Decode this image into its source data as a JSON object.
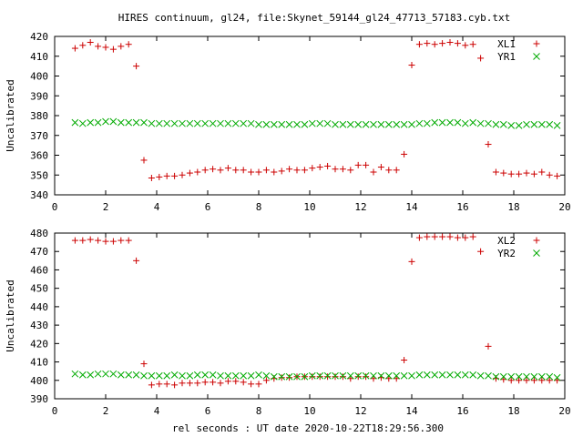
{
  "title": "HIRES continuum, gl24, file:Skynet_59144_gl24_47713_57183.cyb.txt",
  "xlabel": "rel seconds : UT date 2020-10-22T18:29:56.300",
  "chart_data": [
    {
      "type": "scatter",
      "ylabel": "Uncalibrated",
      "xlim": [
        0,
        20
      ],
      "ylim": [
        340,
        420
      ],
      "xticks": [
        0,
        2,
        4,
        6,
        8,
        10,
        12,
        14,
        16,
        18,
        20
      ],
      "yticks": [
        340,
        350,
        360,
        370,
        380,
        390,
        400,
        410,
        420
      ],
      "legend_position": "top-right",
      "series": [
        {
          "name": "XL1",
          "marker": "plus",
          "color": "#cc0000",
          "x": [
            0.8,
            1.1,
            1.4,
            1.7,
            2.0,
            2.3,
            2.6,
            2.9,
            3.2,
            3.5,
            3.8,
            4.1,
            4.4,
            4.7,
            5.0,
            5.3,
            5.6,
            5.9,
            6.2,
            6.5,
            6.8,
            7.1,
            7.4,
            7.7,
            8.0,
            8.3,
            8.6,
            8.9,
            9.2,
            9.5,
            9.8,
            10.1,
            10.4,
            10.7,
            11.0,
            11.3,
            11.6,
            11.9,
            12.2,
            12.5,
            12.8,
            13.1,
            13.4,
            13.7,
            14.0,
            14.3,
            14.6,
            14.9,
            15.2,
            15.5,
            15.8,
            16.1,
            16.4,
            16.7,
            17.0,
            17.3,
            17.6,
            17.9,
            18.2,
            18.5,
            18.8,
            19.1,
            19.4,
            19.7
          ],
          "y": [
            414,
            415.5,
            417,
            415,
            414.5,
            413.5,
            415,
            416,
            405,
            357.5,
            348.5,
            349,
            349.5,
            349.5,
            350,
            351,
            351.5,
            352.5,
            353,
            352.5,
            353.5,
            352.5,
            352.5,
            351.5,
            351.5,
            352.5,
            351.5,
            352,
            353,
            352.5,
            352.5,
            353.5,
            354,
            354.5,
            353,
            353,
            352.5,
            355,
            355,
            351.5,
            354,
            352.5,
            352.5,
            360.5,
            405.5,
            416,
            416.5,
            416,
            416.5,
            417,
            416.5,
            415.5,
            416,
            409,
            365.5,
            351.5,
            351,
            350.5,
            350.5,
            351,
            350.5,
            351.5,
            350,
            349.5
          ]
        },
        {
          "name": "YR1",
          "marker": "cross",
          "color": "#00aa00",
          "x": [
            0.8,
            1.1,
            1.4,
            1.7,
            2.0,
            2.3,
            2.6,
            2.9,
            3.2,
            3.5,
            3.8,
            4.1,
            4.4,
            4.7,
            5.0,
            5.3,
            5.6,
            5.9,
            6.2,
            6.5,
            6.8,
            7.1,
            7.4,
            7.7,
            8.0,
            8.3,
            8.6,
            8.9,
            9.2,
            9.5,
            9.8,
            10.1,
            10.4,
            10.7,
            11.0,
            11.3,
            11.6,
            11.9,
            12.2,
            12.5,
            12.8,
            13.1,
            13.4,
            13.7,
            14.0,
            14.3,
            14.6,
            14.9,
            15.2,
            15.5,
            15.8,
            16.1,
            16.4,
            16.7,
            17.0,
            17.3,
            17.6,
            17.9,
            18.2,
            18.5,
            18.8,
            19.1,
            19.4,
            19.7
          ],
          "y": [
            376.5,
            376,
            376.5,
            376.5,
            377,
            377,
            376.5,
            376.5,
            376.5,
            376.5,
            376,
            376,
            376,
            376,
            376,
            376,
            376,
            376,
            376,
            376,
            376,
            376,
            376,
            376,
            375.5,
            375.5,
            375.5,
            375.5,
            375.5,
            375.5,
            375.5,
            376,
            376,
            376,
            375.5,
            375.5,
            375.5,
            375.5,
            375.5,
            375.5,
            375.5,
            375.5,
            375.5,
            375.5,
            375.5,
            376,
            376,
            376.5,
            376.5,
            376.5,
            376.5,
            376,
            376.5,
            376,
            376,
            375.5,
            375.5,
            375,
            375,
            375.5,
            375.5,
            375.5,
            375.5,
            375
          ]
        }
      ]
    },
    {
      "type": "scatter",
      "ylabel": "Uncalibrated",
      "xlim": [
        0,
        20
      ],
      "ylim": [
        390,
        480
      ],
      "xticks": [
        0,
        2,
        4,
        6,
        8,
        10,
        12,
        14,
        16,
        18,
        20
      ],
      "yticks": [
        390,
        400,
        410,
        420,
        430,
        440,
        450,
        460,
        470,
        480
      ],
      "legend_position": "top-right",
      "series": [
        {
          "name": "XL2",
          "marker": "plus",
          "color": "#cc0000",
          "x": [
            0.8,
            1.1,
            1.4,
            1.7,
            2.0,
            2.3,
            2.6,
            2.9,
            3.2,
            3.5,
            3.8,
            4.1,
            4.4,
            4.7,
            5.0,
            5.3,
            5.6,
            5.9,
            6.2,
            6.5,
            6.8,
            7.1,
            7.4,
            7.7,
            8.0,
            8.3,
            8.6,
            8.9,
            9.2,
            9.5,
            9.8,
            10.1,
            10.4,
            10.7,
            11.0,
            11.3,
            11.6,
            11.9,
            12.2,
            12.5,
            12.8,
            13.1,
            13.4,
            13.7,
            14.0,
            14.3,
            14.6,
            14.9,
            15.2,
            15.5,
            15.8,
            16.1,
            16.4,
            16.7,
            17.0,
            17.3,
            17.6,
            17.9,
            18.2,
            18.5,
            18.8,
            19.1,
            19.4,
            19.7
          ],
          "y": [
            476,
            476,
            476.5,
            476,
            475.5,
            475.5,
            476,
            476,
            465,
            409,
            397.5,
            398,
            398,
            397.5,
            398.5,
            398.5,
            398.5,
            399,
            399,
            398.5,
            399.5,
            399.5,
            399,
            398,
            398,
            400,
            401,
            401.5,
            401.5,
            402,
            402,
            402,
            402,
            402,
            402,
            402,
            401,
            402,
            402,
            401,
            401.5,
            401,
            401,
            411,
            464.5,
            477.5,
            478,
            478,
            478,
            478,
            477.5,
            477.5,
            478,
            470,
            418.5,
            401,
            400.5,
            400,
            400,
            400,
            400,
            400,
            400,
            400
          ]
        },
        {
          "name": "YR2",
          "marker": "cross",
          "color": "#00aa00",
          "x": [
            0.8,
            1.1,
            1.4,
            1.7,
            2.0,
            2.3,
            2.6,
            2.9,
            3.2,
            3.5,
            3.8,
            4.1,
            4.4,
            4.7,
            5.0,
            5.3,
            5.6,
            5.9,
            6.2,
            6.5,
            6.8,
            7.1,
            7.4,
            7.7,
            8.0,
            8.3,
            8.6,
            8.9,
            9.2,
            9.5,
            9.8,
            10.1,
            10.4,
            10.7,
            11.0,
            11.3,
            11.6,
            11.9,
            12.2,
            12.5,
            12.8,
            13.1,
            13.4,
            13.7,
            14.0,
            14.3,
            14.6,
            14.9,
            15.2,
            15.5,
            15.8,
            16.1,
            16.4,
            16.7,
            17.0,
            17.3,
            17.6,
            17.9,
            18.2,
            18.5,
            18.8,
            19.1,
            19.4,
            19.7
          ],
          "y": [
            403.5,
            403,
            403,
            403.5,
            403.5,
            403.5,
            403,
            403,
            403,
            402.5,
            402.5,
            402.5,
            402.5,
            403,
            402.5,
            402.5,
            403,
            403,
            403,
            402.5,
            402.5,
            402.5,
            402.5,
            402.5,
            403,
            402.5,
            402,
            402,
            402,
            402,
            402,
            402.5,
            402.5,
            402.5,
            402.5,
            402.5,
            402.5,
            402.5,
            402.5,
            402.5,
            402.5,
            402.5,
            402.5,
            402.5,
            402.5,
            403,
            403,
            403,
            403,
            403,
            403,
            403,
            403,
            402.5,
            402.5,
            402,
            402,
            402,
            402,
            402,
            402,
            402,
            402,
            401.5
          ]
        }
      ]
    }
  ]
}
